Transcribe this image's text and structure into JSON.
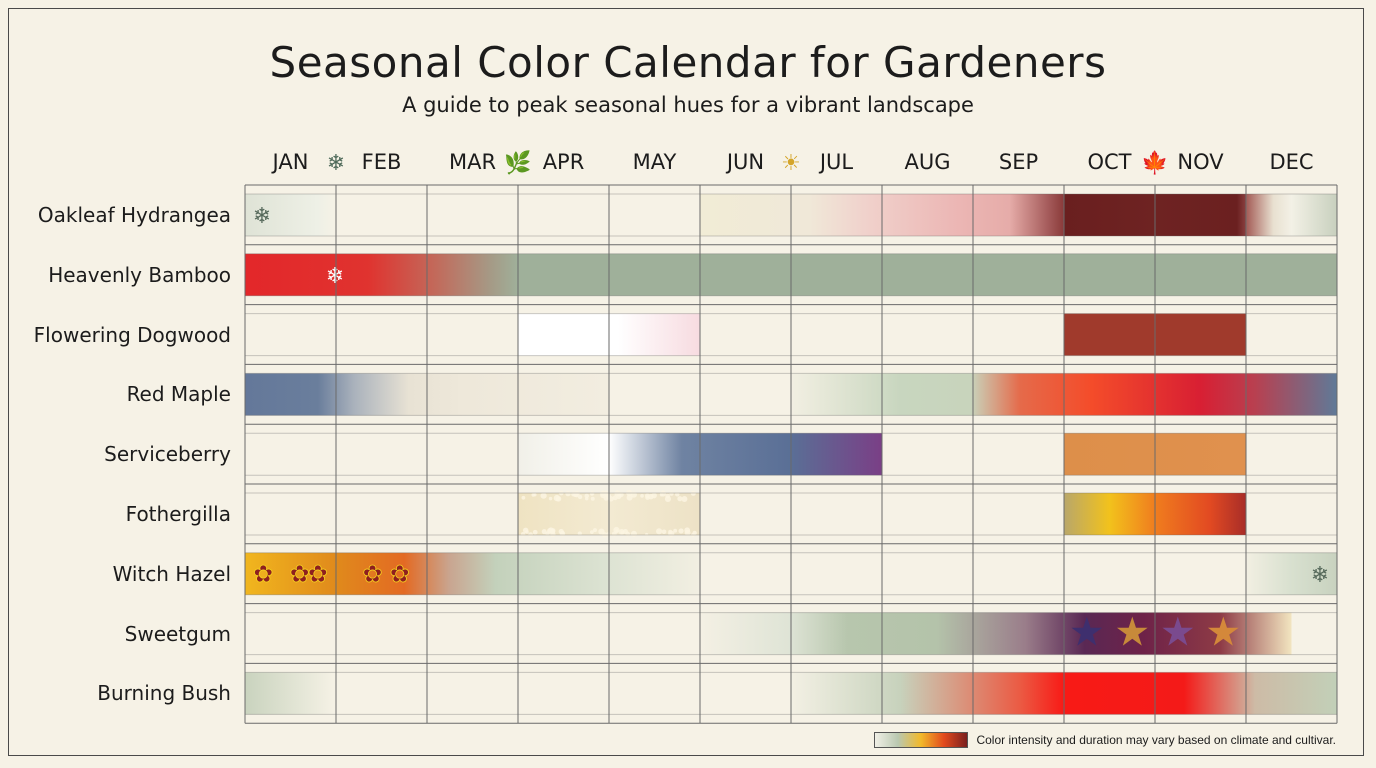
{
  "title": "Seasonal Color Calendar for Gardeners",
  "subtitle": "A guide to peak seasonal hues for a vibrant landscape",
  "note": "Color intensity and duration may vary based on climate and cultivar.",
  "icons": {
    "winter": "snowflake-icon",
    "spring": "leaf-icon",
    "summer": "sun-icon",
    "autumn": "maple-leaf-icon",
    "flower": "flower-icon",
    "star": "star-icon"
  },
  "chart_data": {
    "type": "heatmap",
    "months": [
      "JAN",
      "FEB",
      "MAR",
      "APR",
      "MAY",
      "JUN",
      "JUL",
      "AUG",
      "SEP",
      "OCT",
      "NOV",
      "DEC"
    ],
    "season_markers": [
      {
        "between": [
          "JAN",
          "FEB"
        ],
        "icon": "snowflake-icon"
      },
      {
        "between": [
          "MAR",
          "APR"
        ],
        "icon": "leaf-icon"
      },
      {
        "between": [
          "JUN",
          "JUL"
        ],
        "icon": "sun-icon"
      },
      {
        "between": [
          "OCT",
          "NOV"
        ],
        "icon": "maple-leaf-icon"
      }
    ],
    "rows": [
      {
        "plant": "Oakleaf Hydrangea",
        "bands": [
          {
            "start": 0,
            "end": 1,
            "stops": [
              [
                0,
                "#dfe3d6"
              ],
              [
                0.8,
                "#eef0e6"
              ],
              [
                1,
                "#f6f2e6"
              ]
            ],
            "icon": "snowflake-icon"
          },
          {
            "start": 5,
            "end": 9,
            "stops": [
              [
                0,
                "#f1ecd6"
              ],
              [
                0.3,
                "#f0e8d8"
              ],
              [
                0.45,
                "#f0d2cc"
              ],
              [
                0.7,
                "#ecb7b5"
              ],
              [
                0.85,
                "#e6aca9"
              ],
              [
                1,
                "#8a3a3a"
              ]
            ]
          },
          {
            "start": 9,
            "end": 11,
            "stops": [
              [
                0,
                "#6a1f1f"
              ],
              [
                0.5,
                "#6e2322"
              ],
              [
                0.95,
                "#6b2020"
              ],
              [
                1,
                "#8a4040"
              ]
            ]
          },
          {
            "start": 11,
            "end": 12,
            "stops": [
              [
                0,
                "#a35a55"
              ],
              [
                0.3,
                "#e8e0d0"
              ],
              [
                0.5,
                "#f3f1e6"
              ],
              [
                1,
                "#c8d0be"
              ]
            ]
          }
        ]
      },
      {
        "plant": "Heavenly Bamboo",
        "bands": [
          {
            "start": 0,
            "end": 3,
            "stops": [
              [
                0,
                "#e3272a"
              ],
              [
                0.45,
                "#e0332f"
              ],
              [
                0.7,
                "#c26a5b"
              ],
              [
                0.9,
                "#a59a86"
              ],
              [
                1,
                "#9fb09a"
              ]
            ],
            "icon": "snowflake-icon"
          },
          {
            "start": 3,
            "end": 12,
            "stops": [
              [
                0,
                "#9fb09a"
              ],
              [
                1,
                "#9fb09a"
              ]
            ]
          }
        ]
      },
      {
        "plant": "Flowering Dogwood",
        "bands": [
          {
            "start": 3,
            "end": 5,
            "stops": [
              [
                0,
                "#ffffff"
              ],
              [
                0.55,
                "#ffffff"
              ],
              [
                1,
                "#f7dbe0"
              ]
            ]
          },
          {
            "start": 9,
            "end": 11,
            "stops": [
              [
                0,
                "#a03a2c"
              ],
              [
                1,
                "#a03a2c"
              ]
            ]
          }
        ]
      },
      {
        "plant": "Red Maple",
        "bands": [
          {
            "start": 0,
            "end": 4,
            "stops": [
              [
                0,
                "#64789a"
              ],
              [
                0.2,
                "#6a7e9c"
              ],
              [
                0.3,
                "#aab2bc"
              ],
              [
                0.45,
                "#e8e2d4"
              ],
              [
                0.6,
                "#eee8da"
              ],
              [
                1,
                "#f2ede0"
              ]
            ]
          },
          {
            "start": 6,
            "end": 12,
            "stops": [
              [
                0,
                "#f2efe2"
              ],
              [
                0.2,
                "#c8d6bf"
              ],
              [
                0.33,
                "#c8d4bc"
              ],
              [
                0.42,
                "#e56a4a"
              ],
              [
                0.55,
                "#f44c2a"
              ],
              [
                0.75,
                "#d81f33"
              ],
              [
                0.85,
                "#b84050"
              ],
              [
                1,
                "#5f7a98"
              ]
            ]
          }
        ]
      },
      {
        "plant": "Serviceberry",
        "bands": [
          {
            "start": 3,
            "end": 7,
            "stops": [
              [
                0,
                "#f1f0e8"
              ],
              [
                0.25,
                "#ffffff"
              ],
              [
                0.45,
                "#6f83a2"
              ],
              [
                0.75,
                "#5a6f96"
              ],
              [
                1,
                "#7a3f86"
              ]
            ]
          },
          {
            "start": 9,
            "end": 11,
            "stops": [
              [
                0,
                "#dd8f4a"
              ],
              [
                1,
                "#e0914e"
              ]
            ]
          }
        ]
      },
      {
        "plant": "Fothergilla",
        "bands": [
          {
            "start": 3,
            "end": 5,
            "stops": [
              [
                0,
                "#efe3c2"
              ],
              [
                0.5,
                "#f3ead2"
              ],
              [
                1,
                "#ede2c6"
              ]
            ],
            "fuzzy": true
          },
          {
            "start": 9,
            "end": 11,
            "stops": [
              [
                0,
                "#b9a76a"
              ],
              [
                0.25,
                "#f2c21c"
              ],
              [
                0.5,
                "#f07d1e"
              ],
              [
                0.8,
                "#e24a22"
              ],
              [
                1,
                "#a82d28"
              ]
            ]
          }
        ]
      },
      {
        "plant": "Witch Hazel",
        "bands": [
          {
            "start": 0,
            "end": 5,
            "stops": [
              [
                0,
                "#f1b61e"
              ],
              [
                0.2,
                "#e08a1c"
              ],
              [
                0.35,
                "#e36a23"
              ],
              [
                0.45,
                "#c9a590"
              ],
              [
                0.55,
                "#c3d1bb"
              ],
              [
                0.8,
                "#dde3d3"
              ],
              [
                1,
                "#f2efe2"
              ]
            ],
            "flowers": [
              0.2,
              0.6,
              0.8,
              1.4,
              1.7
            ]
          },
          {
            "start": 11,
            "end": 12,
            "stops": [
              [
                0,
                "#f2efe2"
              ],
              [
                0.5,
                "#d8e0cf"
              ],
              [
                1,
                "#c8d2bf"
              ]
            ],
            "icon": "snowflake-icon"
          }
        ]
      },
      {
        "plant": "Sweetgum",
        "bands": [
          {
            "start": 5,
            "end": 11.5,
            "stops": [
              [
                0,
                "#f4f0e4"
              ],
              [
                0.15,
                "#dfe4d6"
              ],
              [
                0.25,
                "#b7c6ad"
              ],
              [
                0.4,
                "#b4c3aa"
              ],
              [
                0.55,
                "#9a7d8a"
              ],
              [
                0.65,
                "#5a2854"
              ],
              [
                0.75,
                "#6e2248"
              ],
              [
                0.88,
                "#8e3b46"
              ],
              [
                1,
                "#f2e5c0"
              ]
            ],
            "stars": [
              9.25,
              9.75,
              10.25,
              10.75
            ]
          }
        ]
      },
      {
        "plant": "Burning Bush",
        "bands": [
          {
            "start": 0,
            "end": 1,
            "stops": [
              [
                0,
                "#c9d3be"
              ],
              [
                1,
                "#f6f2e6"
              ]
            ]
          },
          {
            "start": 6,
            "end": 12,
            "stops": [
              [
                0,
                "#f3f0e4"
              ],
              [
                0.2,
                "#c7d2bc"
              ],
              [
                0.42,
                "#eb5a43"
              ],
              [
                0.5,
                "#f81a16"
              ],
              [
                0.72,
                "#f41a18"
              ],
              [
                0.85,
                "#cdbba6"
              ],
              [
                1,
                "#c2d0b8"
              ]
            ]
          }
        ]
      }
    ]
  }
}
